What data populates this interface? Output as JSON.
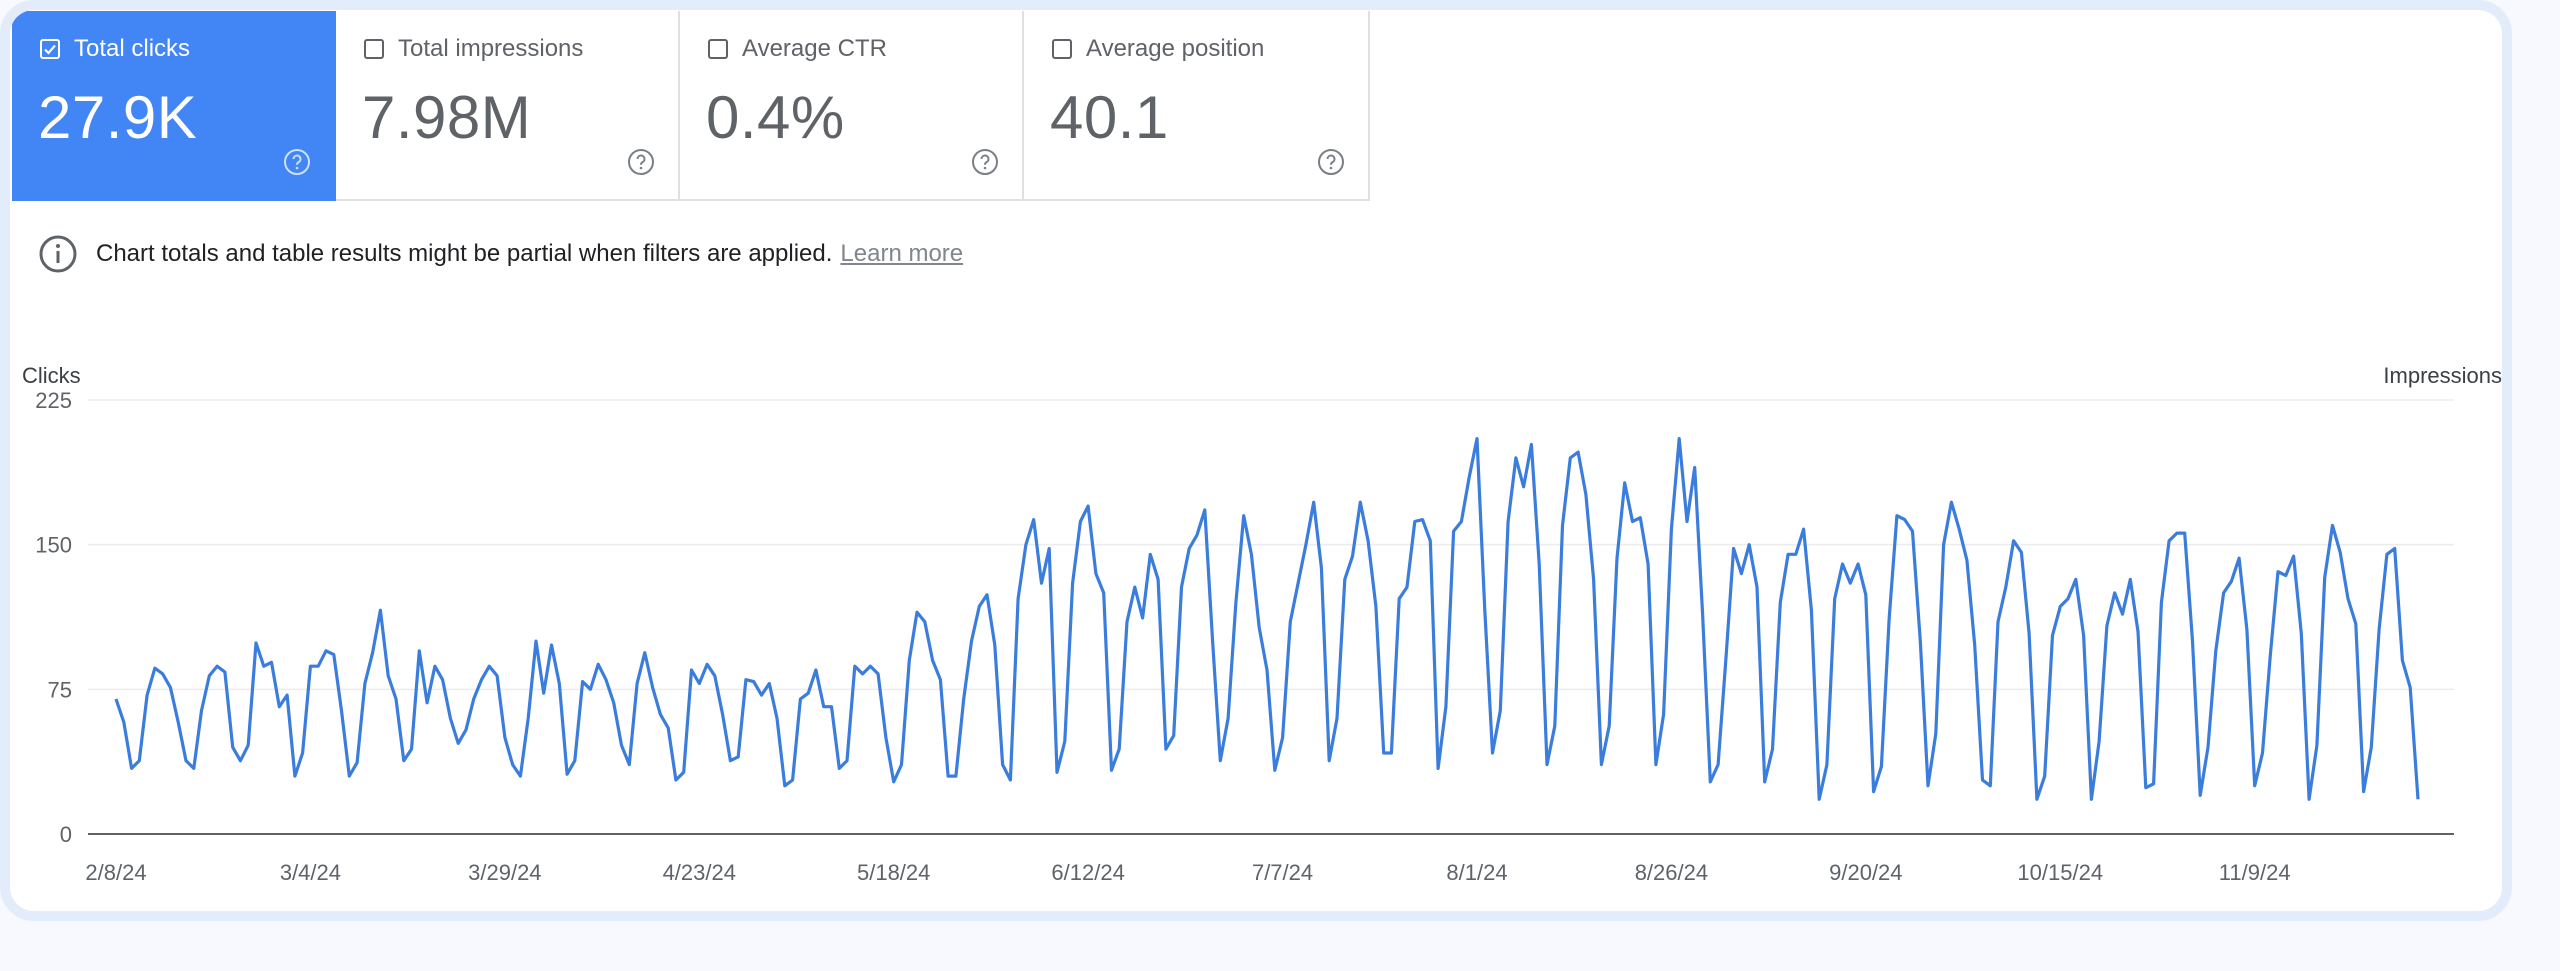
{
  "metrics": [
    {
      "label": "Total clicks",
      "value": "27.9K",
      "checked": true
    },
    {
      "label": "Total impressions",
      "value": "7.98M",
      "checked": false
    },
    {
      "label": "Average CTR",
      "value": "0.4%",
      "checked": false
    },
    {
      "label": "Average position",
      "value": "40.1",
      "checked": false
    }
  ],
  "notice": {
    "text": "Chart totals and table results might be partial when filters are applied.",
    "link": "Learn more"
  },
  "colors": {
    "accent": "#4285f4",
    "line": "#3b7ddd",
    "grid": "#ececec"
  },
  "chart_data": {
    "type": "line",
    "ylabel": "Clicks",
    "y2label": "Impressions",
    "ylim": [
      0,
      225
    ],
    "yticks": [
      0,
      75,
      150,
      225
    ],
    "xticks": [
      "2/8/24",
      "3/4/24",
      "3/29/24",
      "4/23/24",
      "5/18/24",
      "6/12/24",
      "7/7/24",
      "8/1/24",
      "8/26/24",
      "9/20/24",
      "10/15/24",
      "11/9/24"
    ],
    "x_start": "2/8/24",
    "series": [
      {
        "values": [
          70,
          58,
          34,
          38,
          72,
          86,
          83,
          76,
          58,
          38,
          34,
          64,
          82,
          87,
          84,
          45,
          38,
          46,
          99,
          87,
          89,
          66,
          72,
          30,
          42,
          87,
          87,
          95,
          93,
          64,
          30,
          37,
          78,
          94,
          116,
          82,
          70,
          38,
          44,
          95,
          68,
          87,
          80,
          60,
          47,
          54,
          70,
          80,
          87,
          82,
          50,
          36,
          30,
          60,
          100,
          73,
          98,
          78,
          31,
          38,
          79,
          75,
          88,
          80,
          68,
          46,
          36,
          78,
          94,
          76,
          62,
          55,
          28,
          32,
          85,
          78,
          88,
          82,
          62,
          38,
          40,
          80,
          79,
          72,
          78,
          60,
          25,
          28,
          70,
          73,
          85,
          66,
          66,
          34,
          38,
          87,
          83,
          87,
          83,
          50,
          27,
          36,
          90,
          115,
          110,
          90,
          80,
          30,
          30,
          70,
          100,
          118,
          124,
          98,
          36,
          28,
          122,
          150,
          163,
          130,
          148,
          32,
          48,
          130,
          162,
          170,
          135,
          125,
          33,
          44,
          110,
          128,
          112,
          145,
          132,
          44,
          51,
          128,
          148,
          155,
          168,
          100,
          38,
          60,
          120,
          165,
          145,
          107,
          85,
          33,
          50,
          110,
          130,
          150,
          172,
          138,
          38,
          60,
          132,
          144,
          172,
          152,
          118,
          42,
          42,
          122,
          128,
          162,
          163,
          152,
          34,
          66,
          157,
          162,
          185,
          205,
          116,
          42,
          64,
          162,
          195,
          180,
          202,
          140,
          36,
          56,
          160,
          195,
          198,
          176,
          132,
          36,
          56,
          143,
          182,
          162,
          164,
          140,
          36,
          62,
          158,
          205,
          162,
          190,
          115,
          27,
          36,
          90,
          148,
          135,
          150,
          128,
          27,
          44,
          120,
          145,
          145,
          158,
          116,
          18,
          36,
          122,
          140,
          130,
          140,
          124,
          22,
          35,
          112,
          165,
          163,
          157,
          100,
          25,
          52,
          150,
          172,
          158,
          142,
          98,
          28,
          25,
          110,
          128,
          152,
          146,
          104,
          18,
          30,
          103,
          118,
          122,
          132,
          103,
          18,
          48,
          108,
          125,
          114,
          132,
          105,
          24,
          26,
          120,
          152,
          156,
          156,
          100,
          20,
          45,
          95,
          125,
          131,
          143,
          106,
          25,
          42,
          92,
          136,
          134,
          144,
          104,
          18,
          46,
          133,
          160,
          146,
          122,
          109,
          22,
          45,
          106,
          145,
          148,
          90,
          76,
          18
        ]
      }
    ]
  }
}
